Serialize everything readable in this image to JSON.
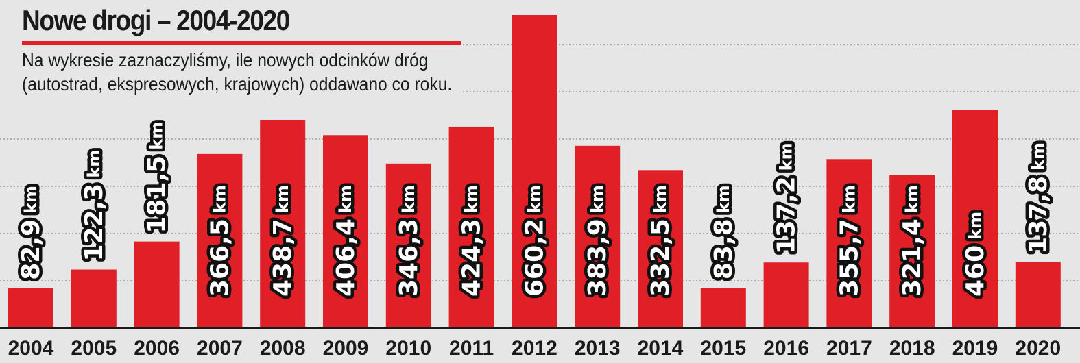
{
  "chart_data": {
    "type": "bar",
    "title": "Nowe drogi – 2004-2020",
    "subtitle": "Na wykresie zaznaczyliśmy, ile nowych odcinków dróg (autostrad, ekspresowych, krajowych) oddawano co roku.",
    "categories": [
      "2004",
      "2005",
      "2006",
      "2007",
      "2008",
      "2009",
      "2010",
      "2011",
      "2012",
      "2013",
      "2014",
      "2015",
      "2016",
      "2017",
      "2018",
      "2019",
      "2020"
    ],
    "values": [
      82.9,
      122.3,
      181.5,
      366.5,
      438.7,
      406.4,
      346.3,
      424.3,
      660.2,
      383.9,
      332.5,
      83.8,
      137.2,
      355.7,
      321.4,
      460,
      137.8
    ],
    "data_labels": [
      "82,9 km",
      "122,3 km",
      "181,5 km",
      "366,5 km",
      "438,7 km",
      "406,4 km",
      "346,3 km",
      "424,3 km",
      "660,2 km",
      "383,9 km",
      "332,5 km",
      "83,8 km",
      "137,2 km",
      "355,7 km",
      "321,4 km",
      "460 km",
      "137,8 km"
    ],
    "unit": "km",
    "xlabel": "",
    "ylabel": "",
    "ylim": [
      0,
      660.2
    ],
    "grid": true,
    "bar_color": "#e11f26",
    "background_color": "#e6e6e6"
  }
}
